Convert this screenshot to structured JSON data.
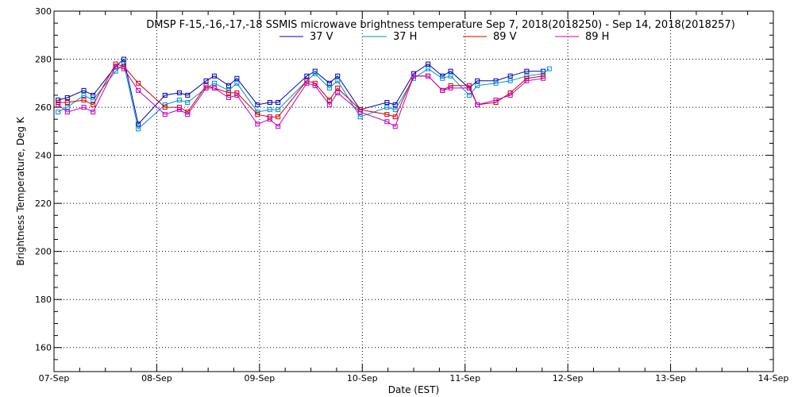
{
  "chart_data": {
    "type": "line",
    "title": "DMSP F-15,-16,-17,-18 SSMIS microwave brightness temperature Sep  7, 2018(2018250) - Sep 14, 2018(2018257)",
    "xlabel": "Date (EST)",
    "ylabel": "Brightness Temperature, Deg K",
    "xlim": [
      0,
      7
    ],
    "ylim": [
      150,
      300
    ],
    "x_tick_labels": [
      "07-Sep",
      "08-Sep",
      "09-Sep",
      "10-Sep",
      "11-Sep",
      "12-Sep",
      "13-Sep",
      "14-Sep"
    ],
    "y_ticks": [
      160,
      180,
      200,
      220,
      240,
      260,
      280,
      300
    ],
    "grid": true,
    "legend": "top-center",
    "x_unit": "days since 07-Sep 00:00 EST",
    "series": [
      {
        "name": "37 V",
        "color": "#0000b0",
        "x": [
          0.04,
          0.13,
          0.29,
          0.38,
          0.6,
          0.68,
          0.82,
          1.08,
          1.22,
          1.3,
          1.48,
          1.56,
          1.7,
          1.78,
          1.98,
          2.1,
          2.18,
          2.46,
          2.54,
          2.68,
          2.76,
          2.98,
          3.24,
          3.32,
          3.5,
          3.64,
          3.78,
          3.86,
          4.04,
          4.12,
          4.3,
          4.44,
          4.6,
          4.76
        ],
        "y": [
          263,
          264,
          267,
          265,
          277,
          280,
          253,
          265,
          266,
          265,
          271,
          273,
          269,
          272,
          261,
          262,
          262,
          273,
          275,
          270,
          273,
          259,
          262,
          261,
          274,
          278,
          273,
          275,
          268,
          271,
          271,
          273,
          275,
          275
        ]
      },
      {
        "name": "37 H",
        "color": "#0090d0",
        "x": [
          0.04,
          0.13,
          0.29,
          0.38,
          0.6,
          0.68,
          0.82,
          1.08,
          1.22,
          1.3,
          1.48,
          1.56,
          1.7,
          1.78,
          1.98,
          2.1,
          2.18,
          2.46,
          2.54,
          2.68,
          2.76,
          2.98,
          3.24,
          3.32,
          3.5,
          3.64,
          3.78,
          3.86,
          4.04,
          4.12,
          4.3,
          4.44,
          4.6,
          4.76,
          4.82
        ],
        "y": [
          258,
          260,
          265,
          263,
          275,
          278,
          251,
          261,
          263,
          262,
          268,
          270,
          267,
          270,
          258,
          259,
          259,
          271,
          274,
          268,
          271,
          256,
          260,
          259,
          272,
          276,
          272,
          273,
          265,
          269,
          270,
          271,
          273,
          274,
          276
        ]
      },
      {
        "name": "89 V",
        "color": "#d00000",
        "x": [
          0.04,
          0.13,
          0.29,
          0.38,
          0.6,
          0.68,
          0.82,
          1.08,
          1.22,
          1.3,
          1.48,
          1.56,
          1.7,
          1.78,
          1.98,
          2.1,
          2.18,
          2.46,
          2.54,
          2.68,
          2.76,
          2.98,
          3.24,
          3.32,
          3.5,
          3.64,
          3.78,
          3.86,
          4.04,
          4.12,
          4.3,
          4.44,
          4.6,
          4.76
        ],
        "y": [
          262,
          262,
          263,
          261,
          278,
          277,
          270,
          260,
          260,
          258,
          269,
          268,
          266,
          266,
          257,
          256,
          256,
          271,
          270,
          263,
          268,
          259,
          257,
          256,
          273,
          273,
          267,
          269,
          269,
          261,
          262,
          266,
          272,
          273
        ]
      },
      {
        "name": "89 H",
        "color": "#c000c0",
        "x": [
          0.04,
          0.13,
          0.29,
          0.38,
          0.6,
          0.68,
          0.82,
          1.08,
          1.22,
          1.3,
          1.48,
          1.56,
          1.7,
          1.78,
          1.98,
          2.1,
          2.18,
          2.46,
          2.54,
          2.68,
          2.76,
          2.98,
          3.24,
          3.32,
          3.5,
          3.64,
          3.78,
          3.86,
          4.04,
          4.12,
          4.3,
          4.44,
          4.6,
          4.76
        ],
        "y": [
          261,
          258,
          260,
          258,
          277,
          276,
          267,
          257,
          259,
          257,
          268,
          268,
          264,
          265,
          253,
          255,
          252,
          270,
          269,
          261,
          266,
          258,
          254,
          252,
          273,
          273,
          267,
          268,
          268,
          261,
          263,
          265,
          271,
          272
        ]
      }
    ]
  }
}
